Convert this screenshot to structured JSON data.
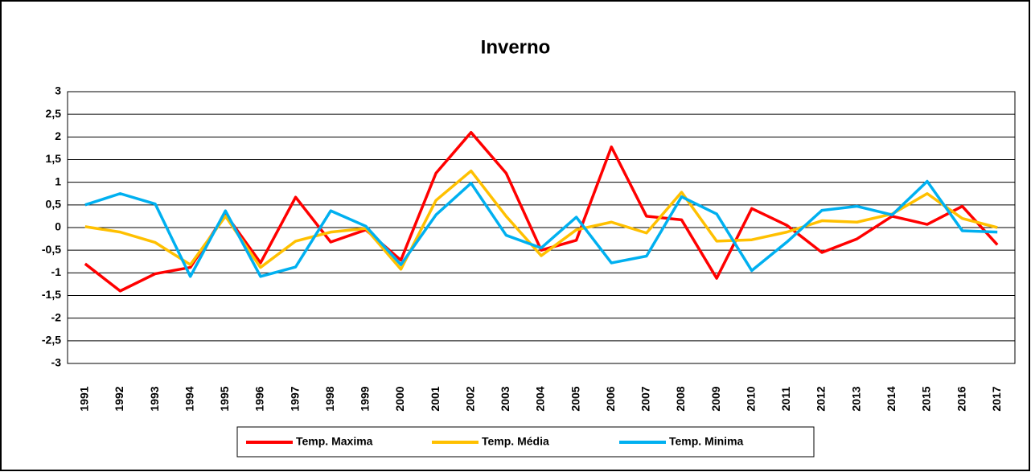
{
  "chart_data": {
    "type": "line",
    "title": "Inverno",
    "categories": [
      "1991",
      "1992",
      "1993",
      "1994",
      "1995",
      "1996",
      "1997",
      "1998",
      "1999",
      "2000",
      "2001",
      "2002",
      "2003",
      "2004",
      "2005",
      "2006",
      "2007",
      "2008",
      "2009",
      "2010",
      "2011",
      "2012",
      "2013",
      "2014",
      "2015",
      "2016",
      "2017"
    ],
    "series": [
      {
        "name": "Temp. Maxima",
        "color": "#ff0000",
        "values": [
          -0.8,
          -1.4,
          -1.02,
          -0.88,
          0.3,
          -0.78,
          0.67,
          -0.32,
          -0.05,
          -0.72,
          1.2,
          2.1,
          1.2,
          -0.5,
          -0.28,
          1.78,
          0.25,
          0.17,
          -1.12,
          0.42,
          0.05,
          -0.55,
          -0.25,
          0.25,
          0.07,
          0.47,
          -0.38
        ]
      },
      {
        "name": "Temp. Média",
        "color": "#ffc000",
        "values": [
          0.02,
          -0.1,
          -0.33,
          -0.82,
          0.25,
          -0.88,
          -0.3,
          -0.1,
          -0.02,
          -0.92,
          0.6,
          1.25,
          0.25,
          -0.62,
          -0.05,
          0.12,
          -0.12,
          0.78,
          -0.3,
          -0.27,
          -0.1,
          0.15,
          0.12,
          0.3,
          0.75,
          0.2,
          0.0
        ]
      },
      {
        "name": "Temp. Minima",
        "color": "#00b0f0",
        "values": [
          0.5,
          0.75,
          0.52,
          -1.08,
          0.37,
          -1.08,
          -0.87,
          0.37,
          0.03,
          -0.82,
          0.28,
          0.98,
          -0.17,
          -0.45,
          0.23,
          -0.78,
          -0.63,
          0.68,
          0.3,
          -0.95,
          -0.32,
          0.38,
          0.47,
          0.28,
          1.02,
          -0.07,
          -0.1
        ]
      }
    ],
    "ylim": [
      -3,
      3
    ],
    "yticks": [
      -3,
      {
        "value": -2.5,
        "label": "-2,5"
      },
      -2,
      {
        "value": -1.5,
        "label": "-1,5"
      },
      -1,
      {
        "value": -0.5,
        "label": "-0,5"
      },
      0,
      {
        "value": 0.5,
        "label": "0,5"
      },
      1,
      {
        "value": 1.5,
        "label": "1,5"
      },
      2,
      {
        "value": 2.5,
        "label": "2,5"
      },
      3
    ],
    "grid": true,
    "legend": "bottom"
  }
}
